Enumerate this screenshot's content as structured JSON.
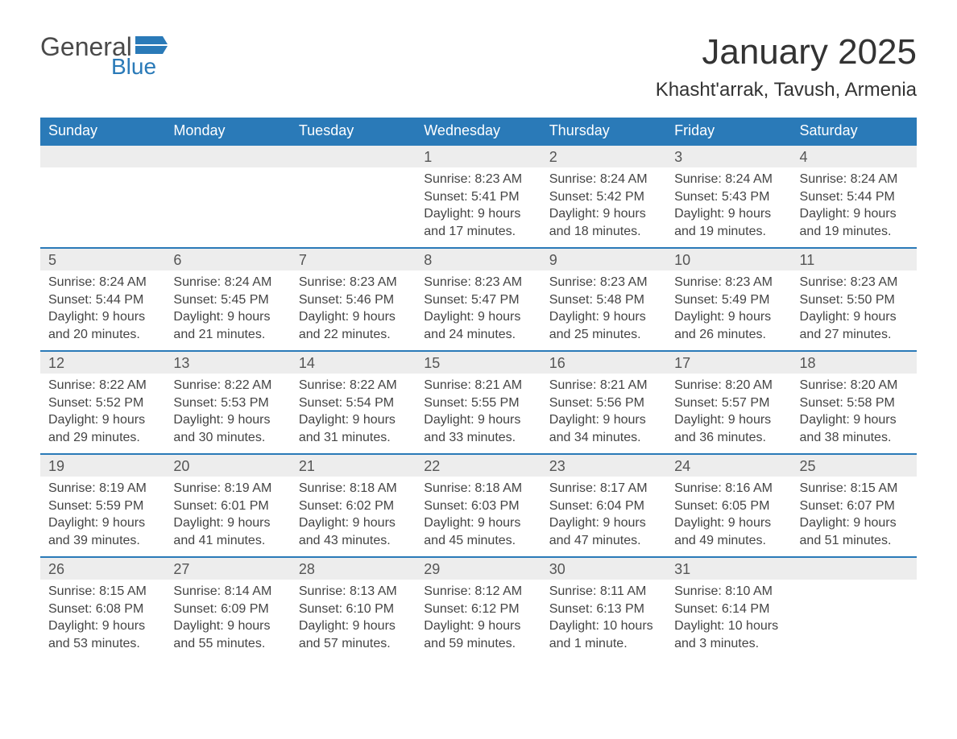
{
  "logo": {
    "general": "General",
    "blue": "Blue"
  },
  "header": {
    "title": "January 2025",
    "location": "Khasht'arrak, Tavush, Armenia"
  },
  "colors": {
    "brand_blue": "#2a7ab8",
    "header_text": "#ffffff",
    "daynum_bg": "#ededed",
    "text": "#333333",
    "background": "#ffffff"
  },
  "typography": {
    "title_fontsize": 44,
    "location_fontsize": 24,
    "dayheader_fontsize": 18,
    "daynum_fontsize": 18,
    "body_fontsize": 16
  },
  "calendar": {
    "day_headers": [
      "Sunday",
      "Monday",
      "Tuesday",
      "Wednesday",
      "Thursday",
      "Friday",
      "Saturday"
    ],
    "weeks": [
      [
        null,
        null,
        null,
        {
          "day": "1",
          "sunrise": "Sunrise: 8:23 AM",
          "sunset": "Sunset: 5:41 PM",
          "daylight1": "Daylight: 9 hours",
          "daylight2": "and 17 minutes."
        },
        {
          "day": "2",
          "sunrise": "Sunrise: 8:24 AM",
          "sunset": "Sunset: 5:42 PM",
          "daylight1": "Daylight: 9 hours",
          "daylight2": "and 18 minutes."
        },
        {
          "day": "3",
          "sunrise": "Sunrise: 8:24 AM",
          "sunset": "Sunset: 5:43 PM",
          "daylight1": "Daylight: 9 hours",
          "daylight2": "and 19 minutes."
        },
        {
          "day": "4",
          "sunrise": "Sunrise: 8:24 AM",
          "sunset": "Sunset: 5:44 PM",
          "daylight1": "Daylight: 9 hours",
          "daylight2": "and 19 minutes."
        }
      ],
      [
        {
          "day": "5",
          "sunrise": "Sunrise: 8:24 AM",
          "sunset": "Sunset: 5:44 PM",
          "daylight1": "Daylight: 9 hours",
          "daylight2": "and 20 minutes."
        },
        {
          "day": "6",
          "sunrise": "Sunrise: 8:24 AM",
          "sunset": "Sunset: 5:45 PM",
          "daylight1": "Daylight: 9 hours",
          "daylight2": "and 21 minutes."
        },
        {
          "day": "7",
          "sunrise": "Sunrise: 8:23 AM",
          "sunset": "Sunset: 5:46 PM",
          "daylight1": "Daylight: 9 hours",
          "daylight2": "and 22 minutes."
        },
        {
          "day": "8",
          "sunrise": "Sunrise: 8:23 AM",
          "sunset": "Sunset: 5:47 PM",
          "daylight1": "Daylight: 9 hours",
          "daylight2": "and 24 minutes."
        },
        {
          "day": "9",
          "sunrise": "Sunrise: 8:23 AM",
          "sunset": "Sunset: 5:48 PM",
          "daylight1": "Daylight: 9 hours",
          "daylight2": "and 25 minutes."
        },
        {
          "day": "10",
          "sunrise": "Sunrise: 8:23 AM",
          "sunset": "Sunset: 5:49 PM",
          "daylight1": "Daylight: 9 hours",
          "daylight2": "and 26 minutes."
        },
        {
          "day": "11",
          "sunrise": "Sunrise: 8:23 AM",
          "sunset": "Sunset: 5:50 PM",
          "daylight1": "Daylight: 9 hours",
          "daylight2": "and 27 minutes."
        }
      ],
      [
        {
          "day": "12",
          "sunrise": "Sunrise: 8:22 AM",
          "sunset": "Sunset: 5:52 PM",
          "daylight1": "Daylight: 9 hours",
          "daylight2": "and 29 minutes."
        },
        {
          "day": "13",
          "sunrise": "Sunrise: 8:22 AM",
          "sunset": "Sunset: 5:53 PM",
          "daylight1": "Daylight: 9 hours",
          "daylight2": "and 30 minutes."
        },
        {
          "day": "14",
          "sunrise": "Sunrise: 8:22 AM",
          "sunset": "Sunset: 5:54 PM",
          "daylight1": "Daylight: 9 hours",
          "daylight2": "and 31 minutes."
        },
        {
          "day": "15",
          "sunrise": "Sunrise: 8:21 AM",
          "sunset": "Sunset: 5:55 PM",
          "daylight1": "Daylight: 9 hours",
          "daylight2": "and 33 minutes."
        },
        {
          "day": "16",
          "sunrise": "Sunrise: 8:21 AM",
          "sunset": "Sunset: 5:56 PM",
          "daylight1": "Daylight: 9 hours",
          "daylight2": "and 34 minutes."
        },
        {
          "day": "17",
          "sunrise": "Sunrise: 8:20 AM",
          "sunset": "Sunset: 5:57 PM",
          "daylight1": "Daylight: 9 hours",
          "daylight2": "and 36 minutes."
        },
        {
          "day": "18",
          "sunrise": "Sunrise: 8:20 AM",
          "sunset": "Sunset: 5:58 PM",
          "daylight1": "Daylight: 9 hours",
          "daylight2": "and 38 minutes."
        }
      ],
      [
        {
          "day": "19",
          "sunrise": "Sunrise: 8:19 AM",
          "sunset": "Sunset: 5:59 PM",
          "daylight1": "Daylight: 9 hours",
          "daylight2": "and 39 minutes."
        },
        {
          "day": "20",
          "sunrise": "Sunrise: 8:19 AM",
          "sunset": "Sunset: 6:01 PM",
          "daylight1": "Daylight: 9 hours",
          "daylight2": "and 41 minutes."
        },
        {
          "day": "21",
          "sunrise": "Sunrise: 8:18 AM",
          "sunset": "Sunset: 6:02 PM",
          "daylight1": "Daylight: 9 hours",
          "daylight2": "and 43 minutes."
        },
        {
          "day": "22",
          "sunrise": "Sunrise: 8:18 AM",
          "sunset": "Sunset: 6:03 PM",
          "daylight1": "Daylight: 9 hours",
          "daylight2": "and 45 minutes."
        },
        {
          "day": "23",
          "sunrise": "Sunrise: 8:17 AM",
          "sunset": "Sunset: 6:04 PM",
          "daylight1": "Daylight: 9 hours",
          "daylight2": "and 47 minutes."
        },
        {
          "day": "24",
          "sunrise": "Sunrise: 8:16 AM",
          "sunset": "Sunset: 6:05 PM",
          "daylight1": "Daylight: 9 hours",
          "daylight2": "and 49 minutes."
        },
        {
          "day": "25",
          "sunrise": "Sunrise: 8:15 AM",
          "sunset": "Sunset: 6:07 PM",
          "daylight1": "Daylight: 9 hours",
          "daylight2": "and 51 minutes."
        }
      ],
      [
        {
          "day": "26",
          "sunrise": "Sunrise: 8:15 AM",
          "sunset": "Sunset: 6:08 PM",
          "daylight1": "Daylight: 9 hours",
          "daylight2": "and 53 minutes."
        },
        {
          "day": "27",
          "sunrise": "Sunrise: 8:14 AM",
          "sunset": "Sunset: 6:09 PM",
          "daylight1": "Daylight: 9 hours",
          "daylight2": "and 55 minutes."
        },
        {
          "day": "28",
          "sunrise": "Sunrise: 8:13 AM",
          "sunset": "Sunset: 6:10 PM",
          "daylight1": "Daylight: 9 hours",
          "daylight2": "and 57 minutes."
        },
        {
          "day": "29",
          "sunrise": "Sunrise: 8:12 AM",
          "sunset": "Sunset: 6:12 PM",
          "daylight1": "Daylight: 9 hours",
          "daylight2": "and 59 minutes."
        },
        {
          "day": "30",
          "sunrise": "Sunrise: 8:11 AM",
          "sunset": "Sunset: 6:13 PM",
          "daylight1": "Daylight: 10 hours",
          "daylight2": "and 1 minute."
        },
        {
          "day": "31",
          "sunrise": "Sunrise: 8:10 AM",
          "sunset": "Sunset: 6:14 PM",
          "daylight1": "Daylight: 10 hours",
          "daylight2": "and 3 minutes."
        },
        null
      ]
    ]
  }
}
